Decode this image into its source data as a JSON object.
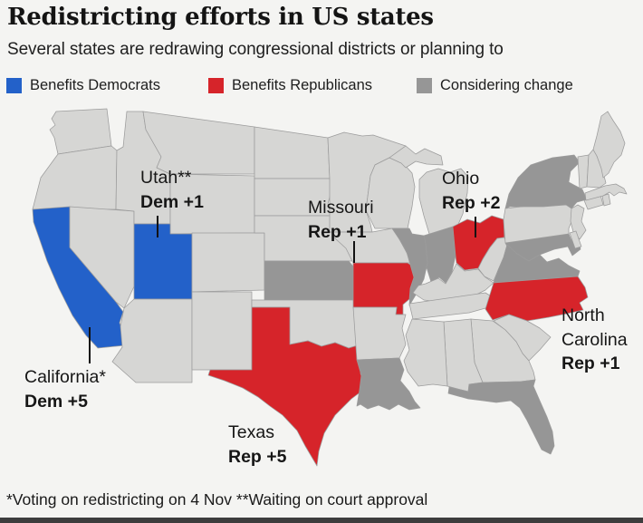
{
  "header": {
    "title": "Redistricting efforts in US states",
    "subtitle": "Several states are redrawing congressional districts or planning to"
  },
  "legend": [
    {
      "key": "dem",
      "label": "Benefits Democrats",
      "color": "#2361c9"
    },
    {
      "key": "rep",
      "label": "Benefits Republicans",
      "color": "#d6242a"
    },
    {
      "key": "considering",
      "label": "Considering change",
      "color": "#969696"
    }
  ],
  "map": {
    "background": "#f4f4f2",
    "default_fill": "#d6d6d4",
    "border_color": "#9c9c9c",
    "state_status": {
      "CA": "dem",
      "UT": "dem",
      "TX": "rep",
      "MO": "rep",
      "OH": "rep",
      "NC": "rep",
      "KS": "considering",
      "IL": "considering",
      "IN": "considering",
      "NY": "considering",
      "MD": "considering",
      "VA": "considering",
      "LA": "considering",
      "FL": "considering"
    }
  },
  "annotations": [
    {
      "name": "Utah**",
      "value": "Dem +1"
    },
    {
      "name": "Missouri",
      "value": "Rep +1"
    },
    {
      "name": "Ohio",
      "value": "Rep +2"
    },
    {
      "name": "California*",
      "value": "Dem +5"
    },
    {
      "name": "Texas",
      "value": "Rep +5"
    },
    {
      "name": "North Carolina",
      "value": "Rep +1"
    }
  ],
  "footnote": "*Voting on redistricting on 4 Nov **Waiting on court approval"
}
